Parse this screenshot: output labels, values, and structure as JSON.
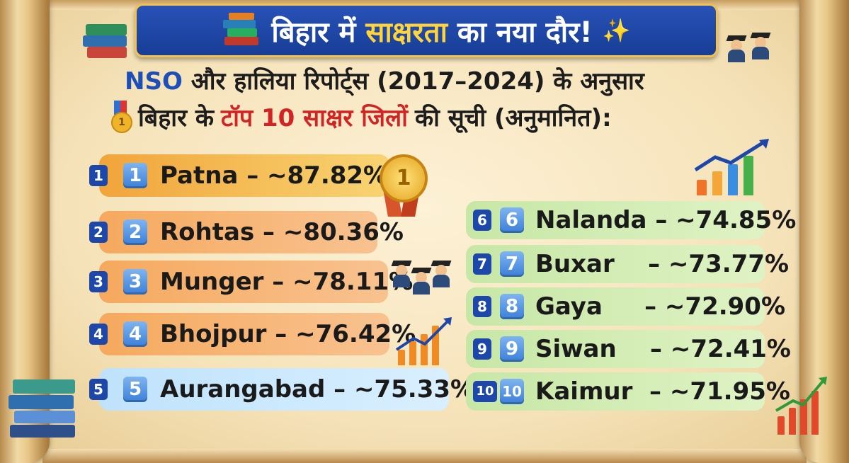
{
  "banner": {
    "title_part1": "बिहार में",
    "title_highlight": "साक्षरता",
    "title_part2": "का नया दौर!",
    "books_icon": "books-icon",
    "sparkle_icon": "sparkles-icon"
  },
  "subtitle": {
    "line1_prefix": "NSO",
    "line1_rest": "और हालिया रिपोर्ट्स (2017–2024) के अनुसार",
    "line2_part1": "बिहार के",
    "line2_highlight": "टॉप 10 साक्षर जिलों",
    "line2_part2": "की सूची (अनुमानित):",
    "medal_icon": "medal-icon"
  },
  "districts": [
    {
      "rank": "1",
      "text": "Patna – ~87.82%"
    },
    {
      "rank": "2",
      "text": "Rohtas – ~80.36%"
    },
    {
      "rank": "3",
      "text": "Munger – ~78.11%"
    },
    {
      "rank": "4",
      "text": "Bhojpur – ~76.42%"
    },
    {
      "rank": "5",
      "text": "Aurangabad – ~75.33%"
    },
    {
      "rank": "6",
      "text": "Nalanda – ~74.85%"
    },
    {
      "rank": "7",
      "text": "Buxar    – ~73.77%"
    },
    {
      "rank": "8",
      "text": "Gaya     – ~72.90%"
    },
    {
      "rank": "9",
      "text": "Siwan    – ~72.41%"
    },
    {
      "rank": "10",
      "text": "Kaimur  – ~71.95%"
    }
  ],
  "first_place_medal": "1",
  "colors": {
    "banner_blue": "#1d47a8",
    "highlight_yellow": "#ffd43b",
    "highlight_red": "#d22424",
    "gold_row": "#f2a43a",
    "orange_row": "#f6a95e",
    "blue_row": "#bfe2fb",
    "green_row": "#c7e7a6"
  }
}
